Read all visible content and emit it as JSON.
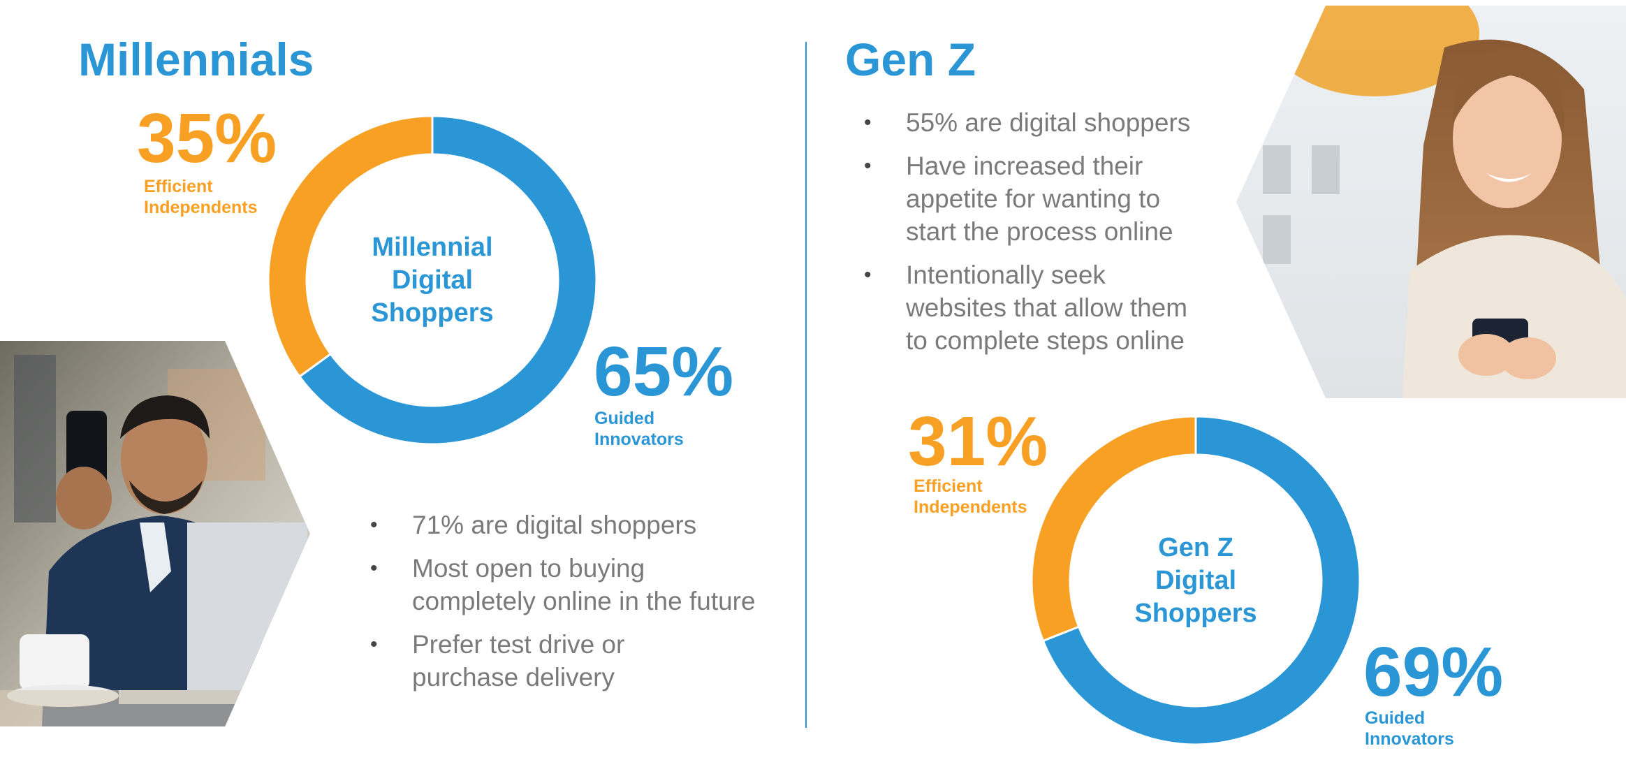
{
  "left": {
    "title": "Millennials",
    "bullets": [
      {
        "lines": [
          "71% are digital shoppers"
        ]
      },
      {
        "lines": [
          "Most open to buying",
          "completely online in the future"
        ]
      },
      {
        "lines": [
          "Prefer test drive or",
          "purchase delivery"
        ]
      }
    ]
  },
  "right": {
    "title": "Gen Z",
    "bullets": [
      {
        "lines": [
          "55% are digital shoppers"
        ]
      },
      {
        "lines": [
          "Have increased their",
          "appetite for wanting to",
          "start the process online"
        ]
      },
      {
        "lines": [
          "Intentionally seek",
          "websites that allow them",
          "to complete steps online"
        ]
      }
    ]
  },
  "colors": {
    "blue": "#2b96d6",
    "orange": "#f7a024",
    "bullet_text": "#7a7a7a"
  },
  "chart_data": [
    {
      "type": "pie",
      "variant": "donut",
      "center_label": [
        "Millennial",
        "Digital",
        "Shoppers"
      ],
      "slices": [
        {
          "label_lines": [
            "Efficient",
            "Independents"
          ],
          "value": 35,
          "display": "35%",
          "color": "#f7a024"
        },
        {
          "label_lines": [
            "Guided",
            "Innovators"
          ],
          "value": 65,
          "display": "65%",
          "color": "#2b96d6"
        }
      ]
    },
    {
      "type": "pie",
      "variant": "donut",
      "center_label": [
        "Gen Z",
        "Digital",
        "Shoppers"
      ],
      "slices": [
        {
          "label_lines": [
            "Efficient",
            "Independents"
          ],
          "value": 31,
          "display": "31%",
          "color": "#f7a024"
        },
        {
          "label_lines": [
            "Guided",
            "Innovators"
          ],
          "value": 69,
          "display": "69%",
          "color": "#2b96d6"
        }
      ]
    }
  ],
  "photos": [
    {
      "subject": "man-with-phone-photo"
    },
    {
      "subject": "woman-with-phone-photo"
    }
  ]
}
